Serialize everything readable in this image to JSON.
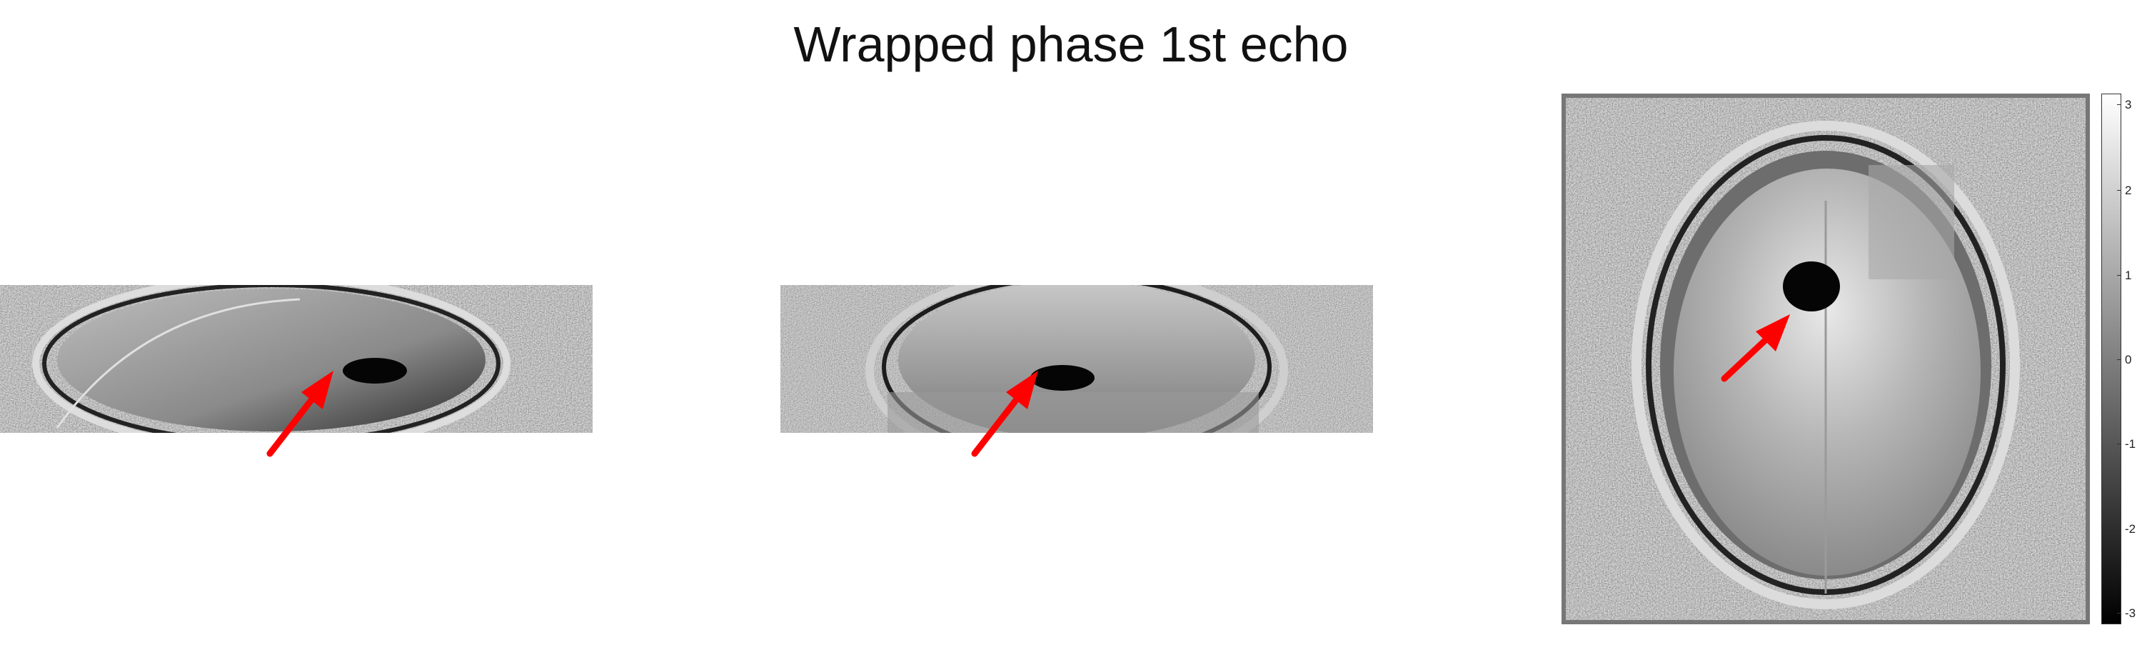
{
  "figure": {
    "title": "Wrapped phase 1st echo",
    "views": [
      {
        "id": "sagittal",
        "arrow_color": "#ff0000"
      },
      {
        "id": "coronal",
        "arrow_color": "#ff0000"
      },
      {
        "id": "axial",
        "arrow_color": "#ff0000"
      }
    ],
    "colorbar": {
      "ticks": [
        "3",
        "2",
        "1",
        "0",
        "-1",
        "-2",
        "-3"
      ],
      "colormap": "gray",
      "range": [
        -3.14,
        3.14
      ]
    }
  }
}
